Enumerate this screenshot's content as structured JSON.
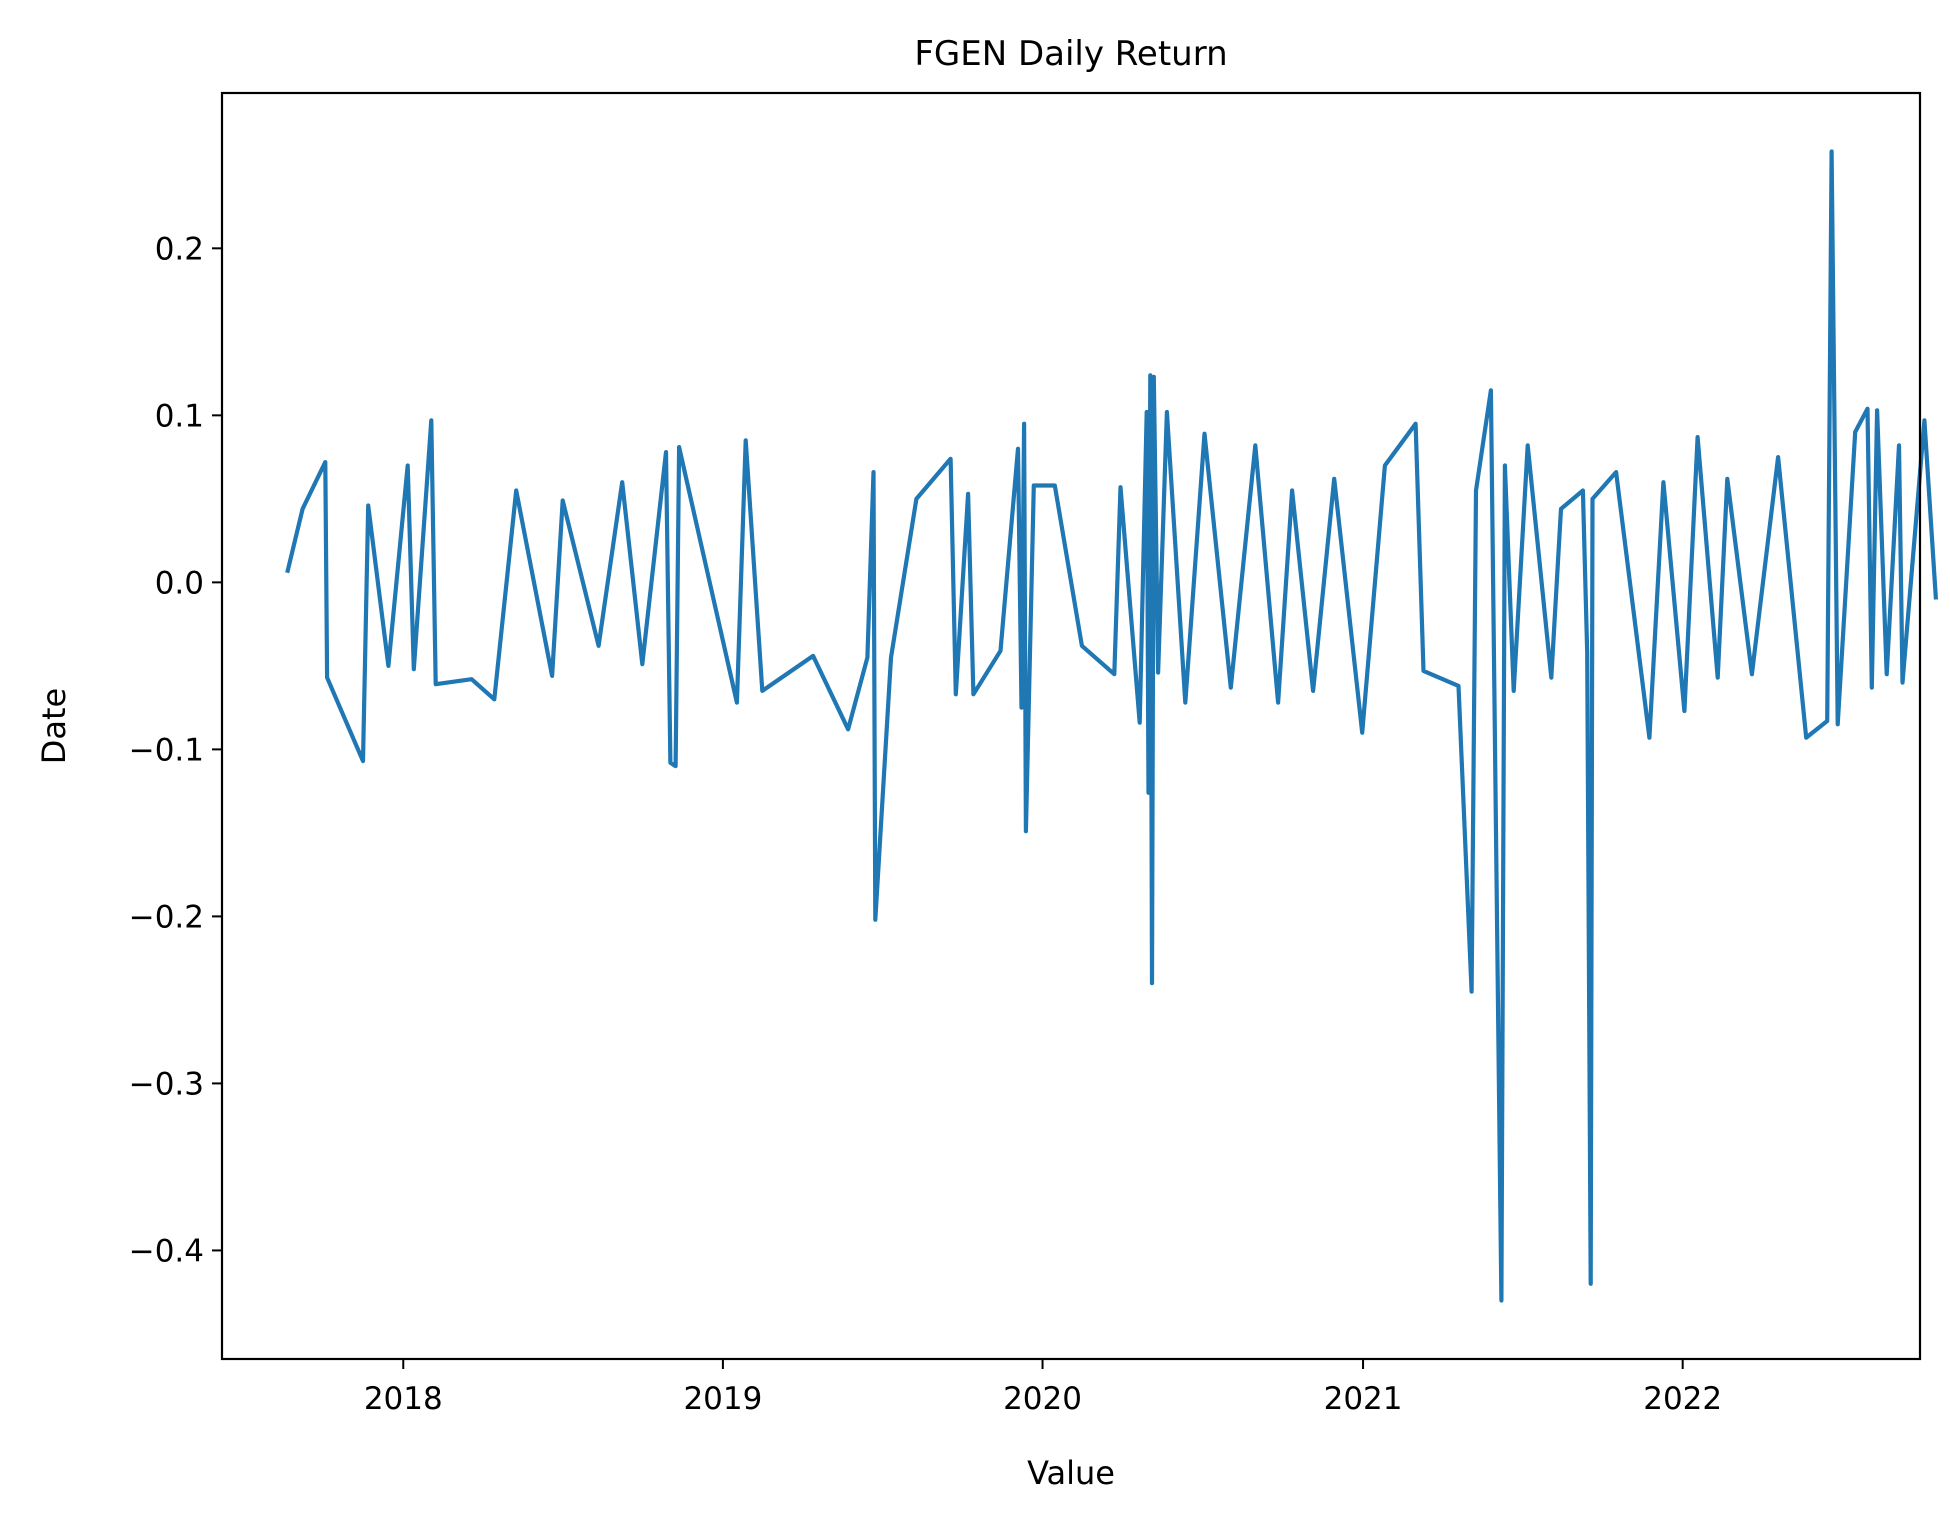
{
  "chart_data": {
    "type": "line",
    "title": "FGEN Daily Return",
    "xlabel": "Value",
    "ylabel": "Date",
    "xlim": [
      "2017-06-08",
      "2022-09-29"
    ],
    "ylim": [
      -0.465,
      0.293
    ],
    "xticks": [
      {
        "date": "2018-01-01",
        "label": "2018"
      },
      {
        "date": "2019-01-01",
        "label": "2019"
      },
      {
        "date": "2020-01-01",
        "label": "2020"
      },
      {
        "date": "2021-01-01",
        "label": "2021"
      },
      {
        "date": "2022-01-01",
        "label": "2022"
      }
    ],
    "yticks": [
      {
        "value": 0.2,
        "label": "0.2"
      },
      {
        "value": 0.1,
        "label": "0.1"
      },
      {
        "value": 0.0,
        "label": "0.0"
      },
      {
        "value": -0.1,
        "label": "−0.1"
      },
      {
        "value": -0.2,
        "label": "−0.2"
      },
      {
        "value": -0.3,
        "label": "−0.3"
      },
      {
        "value": -0.4,
        "label": "−0.4"
      }
    ],
    "grid": false,
    "series": [
      {
        "color": "#1f77b4",
        "points": [
          [
            "2017-08-22",
            0.007
          ],
          [
            "2017-09-08",
            0.044
          ],
          [
            "2017-10-04",
            0.072
          ],
          [
            "2017-10-06",
            -0.057
          ],
          [
            "2017-11-16",
            -0.107
          ],
          [
            "2017-11-22",
            0.046
          ],
          [
            "2017-12-15",
            -0.05
          ],
          [
            "2018-01-06",
            0.07
          ],
          [
            "2018-01-13",
            -0.052
          ],
          [
            "2018-02-02",
            0.097
          ],
          [
            "2018-02-07",
            -0.061
          ],
          [
            "2018-03-20",
            -0.058
          ],
          [
            "2018-04-15",
            -0.07
          ],
          [
            "2018-05-10",
            0.055
          ],
          [
            "2018-06-20",
            -0.056
          ],
          [
            "2018-07-02",
            0.049
          ],
          [
            "2018-08-12",
            -0.038
          ],
          [
            "2018-09-08",
            0.06
          ],
          [
            "2018-10-01",
            -0.049
          ],
          [
            "2018-10-28",
            0.078
          ],
          [
            "2018-11-02",
            -0.108
          ],
          [
            "2018-11-08",
            -0.11
          ],
          [
            "2018-11-12",
            0.081
          ],
          [
            "2019-01-17",
            -0.072
          ],
          [
            "2019-01-27",
            0.085
          ],
          [
            "2019-02-15",
            -0.065
          ],
          [
            "2019-04-14",
            -0.044
          ],
          [
            "2019-05-24",
            -0.088
          ],
          [
            "2019-06-15",
            -0.045
          ],
          [
            "2019-06-22",
            0.066
          ],
          [
            "2019-06-24",
            -0.202
          ],
          [
            "2019-07-12",
            -0.045
          ],
          [
            "2019-08-10",
            0.05
          ],
          [
            "2019-09-18",
            0.074
          ],
          [
            "2019-09-24",
            -0.067
          ],
          [
            "2019-10-08",
            0.053
          ],
          [
            "2019-10-14",
            -0.067
          ],
          [
            "2019-11-14",
            -0.041
          ],
          [
            "2019-12-04",
            0.08
          ],
          [
            "2019-12-08",
            -0.075
          ],
          [
            "2019-12-11",
            0.095
          ],
          [
            "2019-12-13",
            -0.149
          ],
          [
            "2019-12-22",
            0.058
          ],
          [
            "2020-01-15",
            0.058
          ],
          [
            "2020-02-15",
            -0.038
          ],
          [
            "2020-03-23",
            -0.055
          ],
          [
            "2020-03-30",
            0.057
          ],
          [
            "2020-04-21",
            -0.084
          ],
          [
            "2020-04-29",
            0.102
          ],
          [
            "2020-05-01",
            -0.126
          ],
          [
            "2020-05-03",
            0.124
          ],
          [
            "2020-05-05",
            -0.24
          ],
          [
            "2020-05-07",
            0.123
          ],
          [
            "2020-05-12",
            -0.054
          ],
          [
            "2020-05-22",
            0.102
          ],
          [
            "2020-06-12",
            -0.072
          ],
          [
            "2020-07-04",
            0.089
          ],
          [
            "2020-08-03",
            -0.063
          ],
          [
            "2020-08-31",
            0.082
          ],
          [
            "2020-09-26",
            -0.072
          ],
          [
            "2020-10-12",
            0.055
          ],
          [
            "2020-11-05",
            -0.065
          ],
          [
            "2020-11-29",
            0.062
          ],
          [
            "2020-12-31",
            -0.09
          ],
          [
            "2021-01-26",
            0.07
          ],
          [
            "2021-03-02",
            0.095
          ],
          [
            "2021-03-11",
            -0.053
          ],
          [
            "2021-04-20",
            -0.062
          ],
          [
            "2021-05-05",
            -0.245
          ],
          [
            "2021-05-10",
            0.055
          ],
          [
            "2021-05-27",
            0.115
          ],
          [
            "2021-06-08",
            -0.43
          ],
          [
            "2021-06-12",
            0.07
          ],
          [
            "2021-06-22",
            -0.065
          ],
          [
            "2021-07-08",
            0.082
          ],
          [
            "2021-08-04",
            -0.057
          ],
          [
            "2021-08-15",
            0.044
          ],
          [
            "2021-09-09",
            0.055
          ],
          [
            "2021-09-14",
            -0.042
          ],
          [
            "2021-09-18",
            -0.42
          ],
          [
            "2021-09-20",
            0.05
          ],
          [
            "2021-10-17",
            0.066
          ],
          [
            "2021-11-24",
            -0.093
          ],
          [
            "2021-12-10",
            0.06
          ],
          [
            "2022-01-03",
            -0.077
          ],
          [
            "2022-01-18",
            0.087
          ],
          [
            "2022-02-10",
            -0.057
          ],
          [
            "2022-02-21",
            0.062
          ],
          [
            "2022-03-21",
            -0.055
          ],
          [
            "2022-04-20",
            0.075
          ],
          [
            "2022-05-22",
            -0.093
          ],
          [
            "2022-06-15",
            -0.083
          ],
          [
            "2022-06-20",
            0.258
          ],
          [
            "2022-06-27",
            -0.085
          ],
          [
            "2022-07-17",
            0.09
          ],
          [
            "2022-07-31",
            0.104
          ],
          [
            "2022-08-05",
            -0.063
          ],
          [
            "2022-08-11",
            0.103
          ],
          [
            "2022-08-22",
            -0.055
          ],
          [
            "2022-09-05",
            0.082
          ],
          [
            "2022-09-09",
            -0.06
          ],
          [
            "2022-10-04",
            0.097
          ],
          [
            "2022-10-17",
            -0.009
          ]
        ]
      }
    ]
  }
}
